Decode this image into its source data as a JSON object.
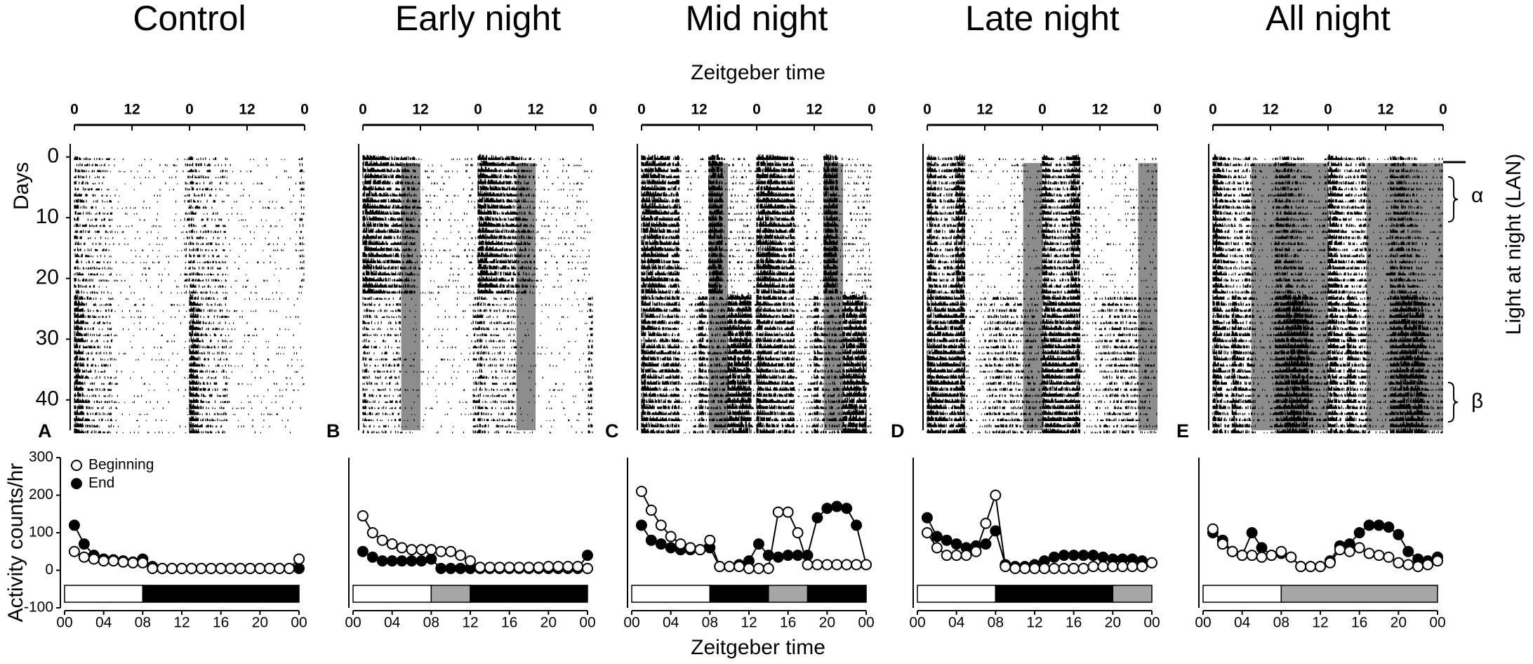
{
  "figure": {
    "top_xlabel": "Zeitgeber time",
    "bottom_xlabel": "Zeitgeber time",
    "days_label": "Days",
    "ylabel": "Activity counts/hr",
    "right_label": "Light at night (LAN)",
    "alpha": "α",
    "beta": "β"
  },
  "chart_data": [
    {
      "type": "line",
      "panel": "A",
      "title": "Control",
      "actogram": {
        "xlim": [
          0,
          48
        ],
        "xticks": [
          0,
          12,
          {
            "value": 24,
            "label": "0"
          },
          {
            "value": 36,
            "label": "12"
          },
          {
            "value": 48,
            "label": "0"
          }
        ],
        "ylim": [
          -1,
          45
        ],
        "yticks": [
          0,
          10,
          20,
          30,
          40
        ]
      },
      "x": [
        1,
        2,
        3,
        4,
        5,
        6,
        7,
        8,
        9,
        10,
        11,
        12,
        13,
        14,
        15,
        16,
        17,
        18,
        19,
        20,
        21,
        22,
        23,
        24
      ],
      "series": [
        {
          "name": "Beginning",
          "color": "#000000",
          "marker_fill": "#ffffff",
          "values": [
            50,
            35,
            30,
            25,
            25,
            22,
            20,
            20,
            5,
            5,
            5,
            5,
            5,
            5,
            5,
            5,
            5,
            5,
            5,
            5,
            5,
            5,
            5,
            30
          ]
        },
        {
          "name": "End",
          "color": "#000000",
          "marker_fill": "#000000",
          "values": [
            120,
            70,
            40,
            30,
            28,
            25,
            22,
            30,
            10,
            5,
            5,
            5,
            5,
            5,
            5,
            5,
            5,
            5,
            5,
            5,
            5,
            5,
            5,
            5
          ]
        }
      ],
      "xlim": [
        0,
        24
      ],
      "xticks": [
        {
          "value": 0,
          "label": "00"
        },
        {
          "value": 4,
          "label": "04"
        },
        {
          "value": 8,
          "label": "08"
        },
        12,
        16,
        20,
        {
          "value": 24,
          "label": "00"
        }
      ],
      "ylim": [
        -100,
        300
      ],
      "yticks": [
        -100,
        0,
        100,
        200,
        300
      ],
      "light_schedule": [
        {
          "start": 0,
          "end": 8,
          "color": "#ffffff"
        },
        {
          "start": 8,
          "end": 24,
          "color": "#000000"
        }
      ]
    },
    {
      "type": "line",
      "panel": "B",
      "title": "Early night",
      "actogram": {
        "xlim": [
          0,
          48
        ],
        "xticks": [
          0,
          12,
          {
            "value": 24,
            "label": "0"
          },
          {
            "value": 36,
            "label": "12"
          },
          {
            "value": 48,
            "label": "0"
          }
        ],
        "ylim": [
          -1,
          45
        ],
        "lan": {
          "hours": [
            8,
            12
          ],
          "from_day": 1
        }
      },
      "x": [
        1,
        2,
        3,
        4,
        5,
        6,
        7,
        8,
        9,
        10,
        11,
        12,
        13,
        14,
        15,
        16,
        17,
        18,
        19,
        20,
        21,
        22,
        23,
        24
      ],
      "series": [
        {
          "color": "#000000",
          "marker_fill": "#ffffff",
          "values": [
            145,
            100,
            80,
            70,
            60,
            55,
            55,
            55,
            50,
            50,
            40,
            25,
            8,
            8,
            8,
            8,
            8,
            8,
            8,
            10,
            10,
            10,
            10,
            5
          ]
        },
        {
          "color": "#000000",
          "marker_fill": "#000000",
          "values": [
            50,
            35,
            25,
            25,
            25,
            25,
            25,
            30,
            5,
            5,
            5,
            5,
            5,
            5,
            5,
            5,
            5,
            5,
            5,
            5,
            5,
            5,
            5,
            40
          ]
        }
      ],
      "xlim": [
        0,
        24
      ],
      "xticks": [
        {
          "value": 0,
          "label": "00"
        },
        {
          "value": 4,
          "label": "04"
        },
        {
          "value": 8,
          "label": "08"
        },
        12,
        16,
        20,
        {
          "value": 24,
          "label": "00"
        }
      ],
      "ylim": [
        -100,
        300
      ],
      "light_schedule": [
        {
          "start": 0,
          "end": 8,
          "color": "#ffffff"
        },
        {
          "start": 8,
          "end": 12,
          "color": "#a6a6a6"
        },
        {
          "start": 12,
          "end": 24,
          "color": "#000000"
        }
      ]
    },
    {
      "type": "line",
      "panel": "C",
      "title": "Mid night",
      "actogram": {
        "xlim": [
          0,
          48
        ],
        "xticks": [
          0,
          12,
          {
            "value": 24,
            "label": "0"
          },
          {
            "value": 36,
            "label": "12"
          },
          {
            "value": 48,
            "label": "0"
          }
        ],
        "ylim": [
          -1,
          45
        ],
        "lan": {
          "hours": [
            14,
            18
          ],
          "from_day": 1
        }
      },
      "x": [
        1,
        2,
        3,
        4,
        5,
        6,
        7,
        8,
        9,
        10,
        11,
        12,
        13,
        14,
        15,
        16,
        17,
        18,
        19,
        20,
        21,
        22,
        23,
        24
      ],
      "series": [
        {
          "color": "#000000",
          "marker_fill": "#ffffff",
          "values": [
            210,
            160,
            120,
            90,
            70,
            60,
            55,
            80,
            10,
            10,
            10,
            5,
            5,
            5,
            155,
            155,
            100,
            15,
            15,
            15,
            15,
            15,
            15,
            15
          ]
        },
        {
          "color": "#000000",
          "marker_fill": "#000000",
          "values": [
            120,
            80,
            70,
            60,
            55,
            55,
            55,
            60,
            10,
            10,
            15,
            25,
            70,
            40,
            35,
            40,
            40,
            40,
            140,
            165,
            170,
            165,
            120,
            15
          ]
        }
      ],
      "xlim": [
        0,
        24
      ],
      "xticks": [
        {
          "value": 0,
          "label": "00"
        },
        {
          "value": 4,
          "label": "04"
        },
        {
          "value": 8,
          "label": "08"
        },
        12,
        16,
        20,
        {
          "value": 24,
          "label": "00"
        }
      ],
      "ylim": [
        -100,
        300
      ],
      "light_schedule": [
        {
          "start": 0,
          "end": 8,
          "color": "#ffffff"
        },
        {
          "start": 8,
          "end": 14,
          "color": "#000000"
        },
        {
          "start": 14,
          "end": 18,
          "color": "#a6a6a6"
        },
        {
          "start": 18,
          "end": 24,
          "color": "#000000"
        }
      ]
    },
    {
      "type": "line",
      "panel": "D",
      "title": "Late night",
      "actogram": {
        "xlim": [
          0,
          48
        ],
        "xticks": [
          0,
          12,
          {
            "value": 24,
            "label": "0"
          },
          {
            "value": 36,
            "label": "12"
          },
          {
            "value": 48,
            "label": "0"
          }
        ],
        "ylim": [
          -1,
          45
        ],
        "lan": {
          "hours": [
            20,
            24
          ],
          "from_day": 1
        }
      },
      "x": [
        1,
        2,
        3,
        4,
        5,
        6,
        7,
        8,
        9,
        10,
        11,
        12,
        13,
        14,
        15,
        16,
        17,
        18,
        19,
        20,
        21,
        22,
        23,
        24
      ],
      "series": [
        {
          "color": "#000000",
          "marker_fill": "#ffffff",
          "values": [
            100,
            60,
            40,
            40,
            40,
            50,
            125,
            200,
            10,
            5,
            5,
            5,
            5,
            5,
            5,
            5,
            5,
            10,
            10,
            10,
            10,
            10,
            10,
            20
          ]
        },
        {
          "color": "#000000",
          "marker_fill": "#000000",
          "values": [
            140,
            90,
            80,
            70,
            60,
            65,
            70,
            105,
            15,
            10,
            10,
            15,
            25,
            35,
            40,
            40,
            40,
            40,
            35,
            30,
            30,
            30,
            25,
            20
          ]
        }
      ],
      "xlim": [
        0,
        24
      ],
      "xticks": [
        {
          "value": 0,
          "label": "00"
        },
        {
          "value": 4,
          "label": "04"
        },
        {
          "value": 8,
          "label": "08"
        },
        12,
        16,
        20,
        {
          "value": 24,
          "label": "00"
        }
      ],
      "ylim": [
        -100,
        300
      ],
      "light_schedule": [
        {
          "start": 0,
          "end": 8,
          "color": "#ffffff"
        },
        {
          "start": 8,
          "end": 20,
          "color": "#000000"
        },
        {
          "start": 20,
          "end": 24,
          "color": "#a6a6a6"
        }
      ]
    },
    {
      "type": "line",
      "panel": "E",
      "title": "All night",
      "actogram": {
        "xlim": [
          0,
          48
        ],
        "xticks": [
          0,
          12,
          {
            "value": 24,
            "label": "0"
          },
          {
            "value": 36,
            "label": "12"
          },
          {
            "value": 48,
            "label": "0"
          }
        ],
        "ylim": [
          -1,
          45
        ],
        "lan": {
          "hours": [
            8,
            24
          ],
          "from_day": 1
        }
      },
      "x": [
        1,
        2,
        3,
        4,
        5,
        6,
        7,
        8,
        9,
        10,
        11,
        12,
        13,
        14,
        15,
        16,
        17,
        18,
        19,
        20,
        21,
        22,
        23,
        24
      ],
      "series": [
        {
          "color": "#000000",
          "marker_fill": "#ffffff",
          "values": [
            110,
            70,
            50,
            40,
            40,
            35,
            40,
            50,
            35,
            10,
            10,
            10,
            20,
            55,
            50,
            60,
            45,
            40,
            35,
            20,
            15,
            10,
            15,
            25
          ]
        },
        {
          "color": "#000000",
          "marker_fill": "#000000",
          "values": [
            100,
            80,
            50,
            40,
            100,
            60,
            40,
            45,
            35,
            10,
            10,
            10,
            25,
            65,
            70,
            100,
            120,
            120,
            115,
            95,
            50,
            30,
            25,
            35
          ]
        }
      ],
      "xlim": [
        0,
        24
      ],
      "xticks": [
        {
          "value": 0,
          "label": "00"
        },
        {
          "value": 4,
          "label": "04"
        },
        {
          "value": 8,
          "label": "08"
        },
        12,
        16,
        20,
        {
          "value": 24,
          "label": "00"
        }
      ],
      "ylim": [
        -100,
        300
      ],
      "light_schedule": [
        {
          "start": 0,
          "end": 8,
          "color": "#ffffff"
        },
        {
          "start": 8,
          "end": 24,
          "color": "#a6a6a6"
        }
      ]
    }
  ]
}
